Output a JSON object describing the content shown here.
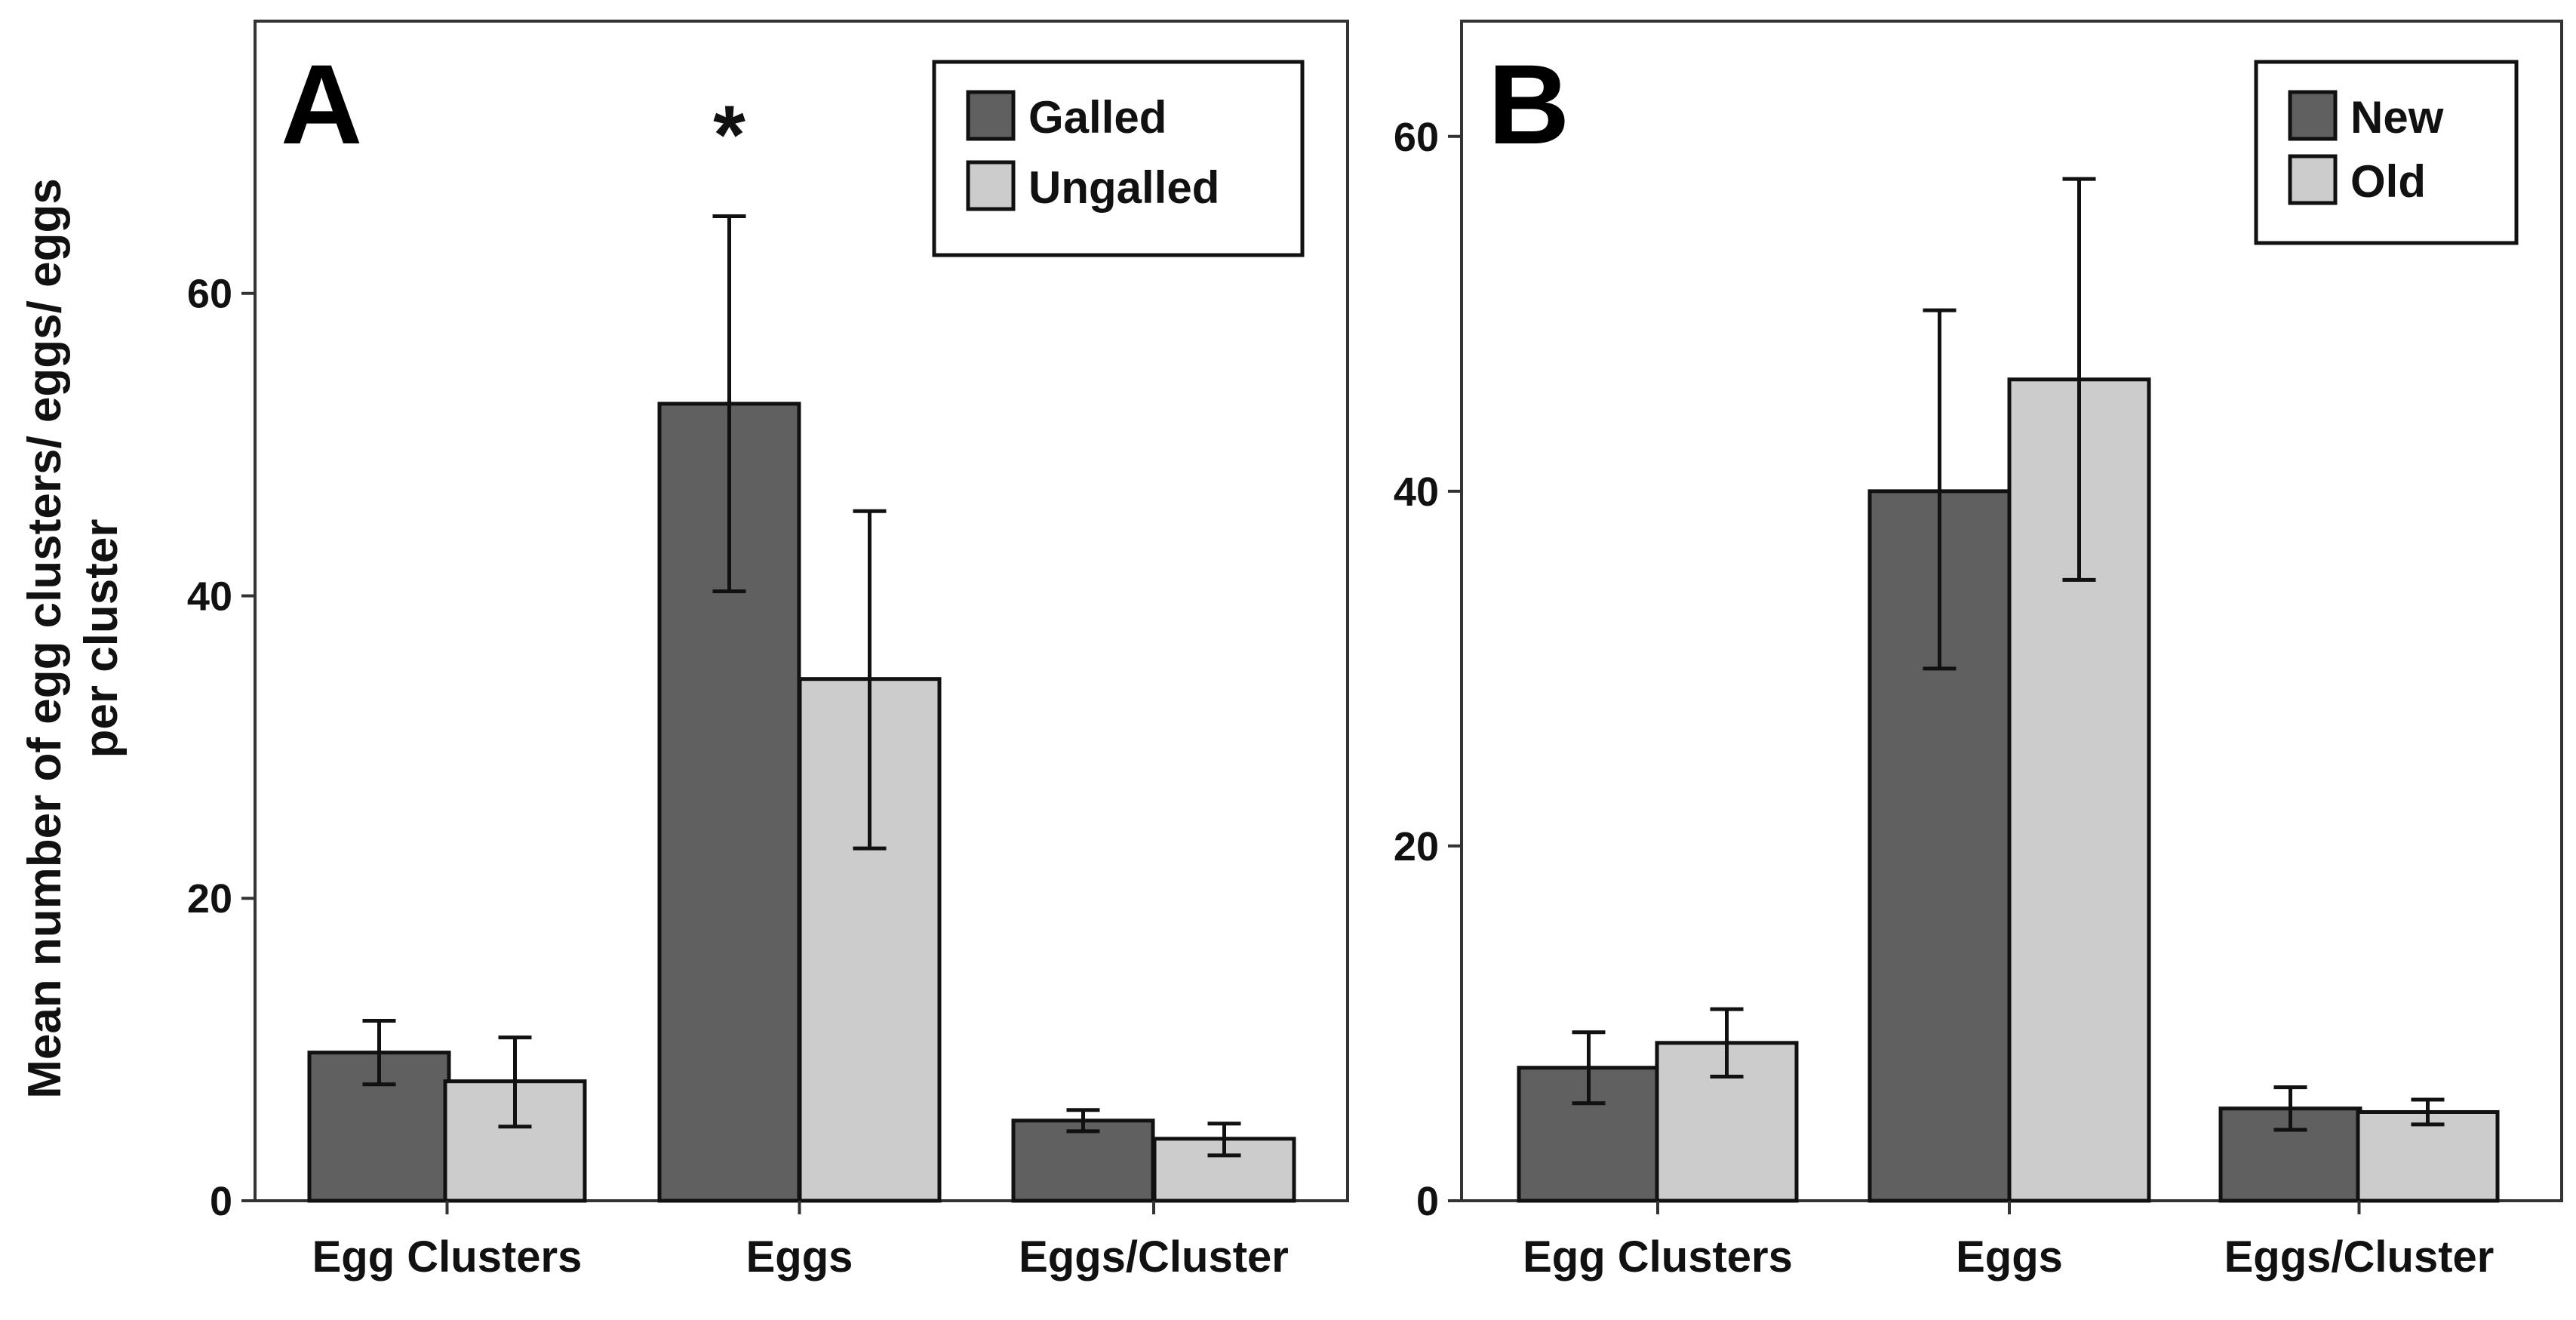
{
  "figure": {
    "ylabel_line1": "Mean number of egg clusters/ eggs/ eggs",
    "ylabel_line2": "per cluster"
  },
  "chart_data": [
    {
      "type": "bar",
      "panel": "A",
      "categories": [
        "Egg Clusters",
        "Eggs",
        "Eggs/Cluster"
      ],
      "series": [
        {
          "name": "Galled",
          "color": "#606060",
          "values": [
            9.8,
            52.7,
            5.3
          ],
          "err_low": [
            7.7,
            40.3,
            4.6
          ],
          "err_high": [
            11.9,
            65.1,
            6.0
          ]
        },
        {
          "name": "Ungalled",
          "color": "#cccccc",
          "values": [
            7.9,
            34.5,
            4.1
          ],
          "err_low": [
            4.9,
            23.3,
            3.0
          ],
          "err_high": [
            10.8,
            45.6,
            5.1
          ]
        }
      ],
      "ylim": [
        0,
        78
      ],
      "yticks": [
        0,
        20,
        40,
        60
      ],
      "annotation": {
        "text": "*",
        "category": "Eggs",
        "series": "Galled",
        "value": 71
      },
      "legend_position": "top-right"
    },
    {
      "type": "bar",
      "panel": "B",
      "categories": [
        "Egg Clusters",
        "Eggs",
        "Eggs/Cluster"
      ],
      "series": [
        {
          "name": "New",
          "color": "#606060",
          "values": [
            7.5,
            40.0,
            5.2
          ],
          "err_low": [
            5.5,
            30.0,
            4.0
          ],
          "err_high": [
            9.5,
            50.2,
            6.4
          ]
        },
        {
          "name": "Old",
          "color": "#cccccc",
          "values": [
            8.9,
            46.3,
            5.0
          ],
          "err_low": [
            7.0,
            35.0,
            4.3
          ],
          "err_high": [
            10.8,
            57.6,
            5.7
          ]
        }
      ],
      "ylim": [
        0,
        66.5
      ],
      "yticks": [
        0,
        20,
        40,
        60
      ],
      "legend_position": "top-right"
    }
  ]
}
